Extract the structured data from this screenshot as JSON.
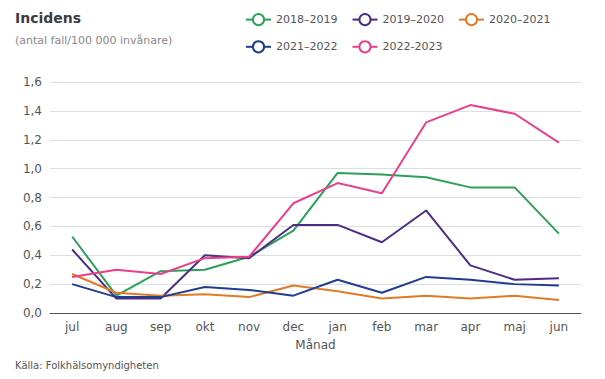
{
  "chart_data": {
    "type": "line",
    "title": "Incidens",
    "subtitle": "(antal fall/100 000 invånare)",
    "xlabel": "Månad",
    "source": "Källa: Folkhälsomyndigheten",
    "categories": [
      "jul",
      "aug",
      "sep",
      "okt",
      "nov",
      "dec",
      "jan",
      "feb",
      "mar",
      "apr",
      "maj",
      "jun"
    ],
    "series": [
      {
        "name": "2018–2019",
        "color": "#2ca05a",
        "values": [
          0.53,
          0.12,
          0.29,
          0.3,
          0.39,
          0.57,
          0.97,
          0.96,
          0.94,
          0.87,
          0.87,
          0.55
        ]
      },
      {
        "name": "2019–2020",
        "color": "#4b2e83",
        "values": [
          0.44,
          0.1,
          0.1,
          0.4,
          0.38,
          0.61,
          0.61,
          0.49,
          0.71,
          0.33,
          0.23,
          0.24
        ]
      },
      {
        "name": "2020–2021",
        "color": "#e07b27",
        "values": [
          0.27,
          0.14,
          0.12,
          0.13,
          0.11,
          0.19,
          0.15,
          0.1,
          0.12,
          0.1,
          0.12,
          0.09
        ]
      },
      {
        "name": "2021–2022",
        "color": "#1f3d8c",
        "values": [
          0.2,
          0.11,
          0.11,
          0.18,
          0.16,
          0.12,
          0.23,
          0.14,
          0.25,
          0.23,
          0.2,
          0.19
        ]
      },
      {
        "name": "2022-2023",
        "color": "#e8408c",
        "values": [
          0.25,
          0.3,
          0.27,
          0.38,
          0.39,
          0.76,
          0.9,
          0.83,
          1.32,
          1.44,
          1.38,
          1.18
        ]
      }
    ],
    "ylim": [
      0,
      1.6
    ],
    "yticks": [
      {
        "value": 0.0,
        "label": "0,0"
      },
      {
        "value": 0.2,
        "label": "0,2"
      },
      {
        "value": 0.4,
        "label": "0,4"
      },
      {
        "value": 0.6,
        "label": "0,6"
      },
      {
        "value": 0.8,
        "label": "0,8"
      },
      {
        "value": 1.0,
        "label": "1,0"
      },
      {
        "value": 1.2,
        "label": "1,2"
      },
      {
        "value": 1.4,
        "label": "1,4"
      },
      {
        "value": 1.6,
        "label": "1,6"
      }
    ],
    "grid": true,
    "legend": "top"
  }
}
